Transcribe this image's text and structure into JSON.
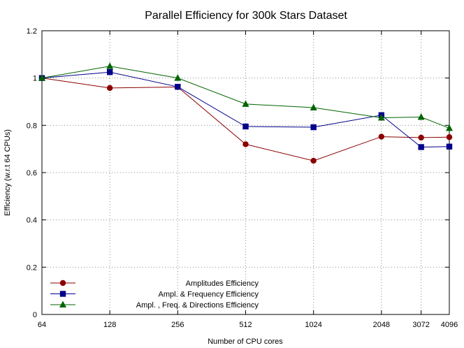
{
  "chart_data": {
    "type": "line",
    "title": "Parallel Efficiency for 300k Stars Dataset",
    "xlabel": "Number of CPU cores",
    "ylabel": "Efficiency (w.r.t 64 CPUs)",
    "x_scale": "log2",
    "x_ticks": [
      64,
      128,
      256,
      512,
      1024,
      2048,
      3072,
      4096
    ],
    "x_tick_labels": [
      "64",
      "128",
      "256",
      "512",
      "1024",
      "2048",
      "3072",
      "4096"
    ],
    "y_ticks": [
      0,
      0.2,
      0.4,
      0.6,
      0.8,
      1,
      1.2
    ],
    "y_tick_labels": [
      "0",
      "0.2",
      "0.4",
      "0.6",
      "0.8",
      "1",
      "1.2"
    ],
    "xlim": [
      64,
      4096
    ],
    "ylim": [
      0,
      1.2
    ],
    "grid": true,
    "legend_position": "bottom-left",
    "series": [
      {
        "name": "Amplitudes Efficiency",
        "color": "#8b0000",
        "marker": "circle",
        "x": [
          64,
          128,
          256,
          512,
          1024,
          2048,
          3072,
          4096
        ],
        "y": [
          1.0,
          0.958,
          0.962,
          0.72,
          0.65,
          0.752,
          0.748,
          0.75
        ]
      },
      {
        "name": "Ampl. & Frequency Efficiency",
        "color": "#00008b",
        "marker": "square",
        "x": [
          64,
          128,
          256,
          512,
          1024,
          2048,
          3072,
          4096
        ],
        "y": [
          1.0,
          1.025,
          0.963,
          0.795,
          0.792,
          0.843,
          0.708,
          0.71
        ]
      },
      {
        "name": "Ampl. , Freq. & Directions Efficiency",
        "color": "#006400",
        "marker": "triangle",
        "x": [
          64,
          128,
          256,
          512,
          1024,
          2048,
          3072,
          4096
        ],
        "y": [
          1.0,
          1.05,
          1.0,
          0.89,
          0.875,
          0.832,
          0.835,
          0.788
        ]
      }
    ]
  }
}
